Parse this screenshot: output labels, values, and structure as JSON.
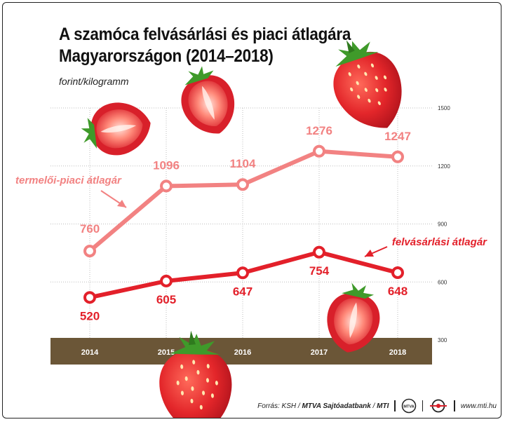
{
  "header": {
    "title": "A szamóca felvásárlási és piaci átlagára Magyarországon (2014–2018)",
    "unit_label": "forint/kilogramm"
  },
  "chart_data": {
    "type": "line",
    "title": "A szamóca felvásárlási és piaci átlagára Magyarországon (2014–2018)",
    "ylabel": "forint/kilogramm",
    "xlabel": "",
    "categories": [
      "2014",
      "2015",
      "2016",
      "2017",
      "2018"
    ],
    "y_ticks": [
      300,
      600,
      900,
      1200,
      1500
    ],
    "ylim": [
      300,
      1500
    ],
    "grid": true,
    "series": [
      {
        "name": "termelői-piaci átlagár",
        "values": [
          760,
          1096,
          1104,
          1276,
          1247
        ],
        "color": "#f28282"
      },
      {
        "name": "felvásárlási átlagár",
        "values": [
          520,
          605,
          647,
          754,
          648
        ],
        "color": "#e3202a"
      }
    ],
    "axis_band_color": "#6b5637"
  },
  "footer": {
    "source_prefix": "Forrás: KSH / ",
    "source_bold": "MTVA Sajtóadatbank",
    "source_sep": " / ",
    "source_mti": "MTI",
    "logo_mtva": "MTVA",
    "website": "www.mti.hu"
  },
  "icons": [
    "strawberry-icon",
    "arrow-icon",
    "mtva-logo-icon",
    "mti-logo-icon"
  ]
}
